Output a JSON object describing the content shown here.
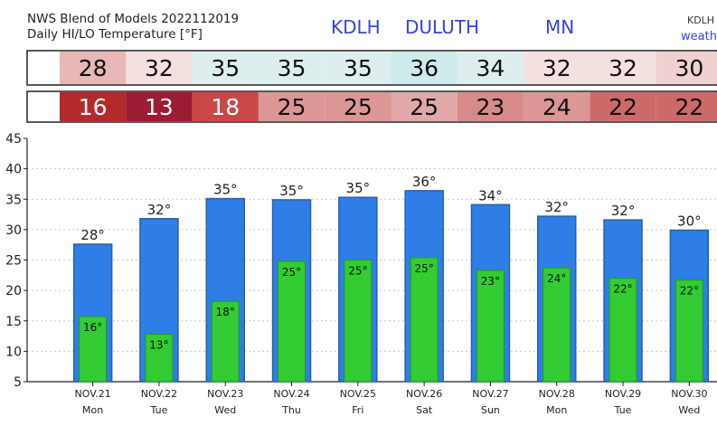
{
  "header": {
    "title_line1": "NWS Blend of Models 2022112019",
    "title_line2": "Daily HI/LO Temperature [°F]",
    "station_id": "KDLH",
    "station_name": "DULUTH",
    "state": "MN",
    "corner_id": "KDLH",
    "corner_text": "weath"
  },
  "colors": {
    "hi_bar": "#2f7de6",
    "hi_bar_edge": "#2a5fa8",
    "lo_bar": "#33cc33",
    "lo_bar_edge": "#2a9a2a",
    "header_blue": "#3344dd",
    "hi_cells": [
      "#e8b8b8",
      "#f5e0e0",
      "#deeeee",
      "#deeeee",
      "#deeeee",
      "#cfeaea",
      "#deeeee",
      "#f5e0e0",
      "#f5e0e0",
      "#f0d0d0"
    ],
    "lo_cells": [
      "#b22a2a",
      "#9b1c34",
      "#c84848",
      "#dc9696",
      "#dc9696",
      "#e0a8a8",
      "#d88a8a",
      "#dc9696",
      "#cc6a6a",
      "#cc6a6a"
    ]
  },
  "chart_data": {
    "type": "bar",
    "title": "Daily HI/LO Temperature [°F]",
    "categories": [
      "NOV.21",
      "NOV.22",
      "NOV.23",
      "NOV.24",
      "NOV.25",
      "NOV.26",
      "NOV.27",
      "NOV.28",
      "NOV.29",
      "NOV.30"
    ],
    "weekdays": [
      "Mon",
      "Tue",
      "Wed",
      "Thu",
      "Fri",
      "Sat",
      "Sun",
      "Mon",
      "Tue",
      "Wed"
    ],
    "series": [
      {
        "name": "HI",
        "values": [
          27.6,
          31.8,
          35.1,
          34.9,
          35.3,
          36.4,
          34.1,
          32.2,
          31.6,
          29.9
        ],
        "labels": [
          "28",
          "32",
          "35",
          "35",
          "35",
          "36",
          "34",
          "32",
          "32",
          "30"
        ]
      },
      {
        "name": "LO",
        "values": [
          15.7,
          12.8,
          18.2,
          24.8,
          25.0,
          25.4,
          23.3,
          23.7,
          22.0,
          21.7
        ],
        "labels": [
          "16",
          "13",
          "18",
          "25",
          "25",
          "25",
          "23",
          "24",
          "22",
          "22"
        ]
      }
    ],
    "ylim": [
      5,
      45
    ],
    "yticks": [
      5,
      10,
      15,
      20,
      25,
      30,
      35,
      40,
      45
    ],
    "grid": true,
    "degree_symbol": "°"
  }
}
